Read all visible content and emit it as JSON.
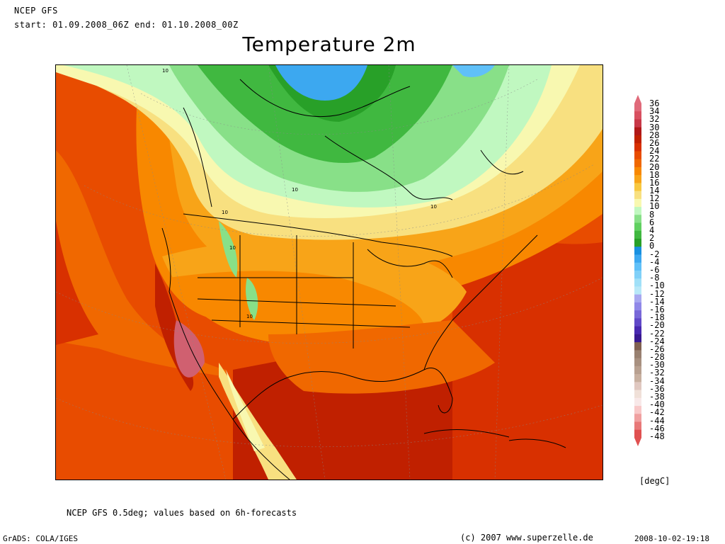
{
  "header": {
    "model": "NCEP GFS",
    "period": "start: 01.09.2008_06Z end: 01.10.2008_00Z"
  },
  "title": "Temperature 2m",
  "map": {
    "description_label": "NCEP GFS 0.5deg; values based on 6h-forecasts",
    "contour_label": "10"
  },
  "legend": {
    "units": "[degC]",
    "labels": [
      "36",
      "34",
      "32",
      "30",
      "28",
      "26",
      "24",
      "22",
      "20",
      "18",
      "16",
      "14",
      "12",
      "10",
      "8",
      "6",
      "4",
      "2",
      "0",
      "-2",
      "-4",
      "-6",
      "-8",
      "-10",
      "-12",
      "-14",
      "-16",
      "-18",
      "-20",
      "-22",
      "-24",
      "-26",
      "-28",
      "-30",
      "-32",
      "-34",
      "-36",
      "-38",
      "-40",
      "-42",
      "-44",
      "-46",
      "-48"
    ],
    "colors": [
      "#e06a7a",
      "#d85060",
      "#c83848",
      "#b01818",
      "#c02000",
      "#d83000",
      "#e84c00",
      "#f06800",
      "#f88800",
      "#f8a418",
      "#f8c840",
      "#f8e080",
      "#f8f8b0",
      "#c0f8c0",
      "#88e088",
      "#60d060",
      "#40b840",
      "#28a028",
      "#1890e0",
      "#3ca8f0",
      "#60c0f8",
      "#80d0f8",
      "#a0e0f8",
      "#b8e8f8",
      "#a8a8f0",
      "#9088e8",
      "#7868d8",
      "#6048c8",
      "#4828b0",
      "#381890",
      "#806050",
      "#988070",
      "#a89080",
      "#b8a090",
      "#c8b0a0",
      "#e0c8c0",
      "#f0e0d8",
      "#f8e8e8",
      "#f8c8c8",
      "#f0a0a0",
      "#e87878",
      "#e05050"
    ],
    "colors_note_cold": "bottom of scale"
  },
  "footer": {
    "software": "GrADS: COLA/IGES",
    "copyright": "(c) 2007 www.superzelle.de",
    "timestamp": "2008-10-02-19:18"
  }
}
